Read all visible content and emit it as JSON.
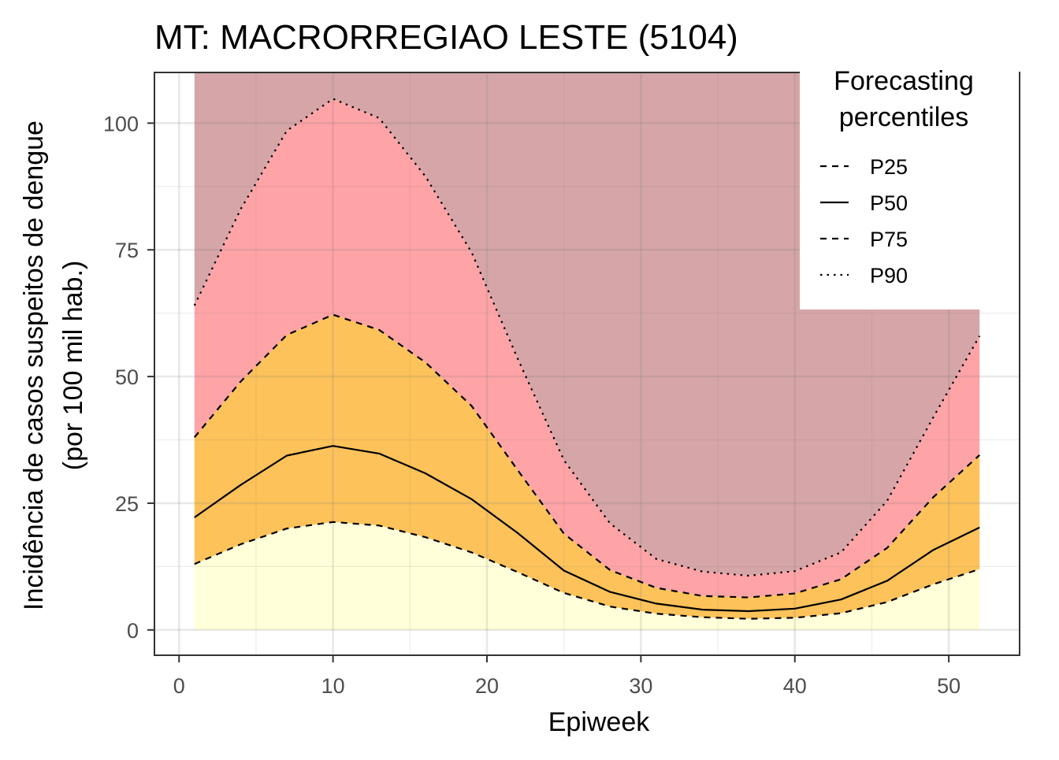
{
  "chart_data": {
    "type": "area",
    "title": "MT: MACRORREGIAO LESTE (5104)",
    "xlabel": "Epiweek",
    "ylabel_line1": "Incidência de casos suspeitos de dengue",
    "ylabel_line2": "(por 100 mil hab.)",
    "xlim": [
      -1.6,
      54.6
    ],
    "ylim": [
      -5,
      110
    ],
    "xticks": [
      0,
      10,
      20,
      30,
      40,
      50
    ],
    "yticks": [
      0,
      25,
      50,
      75,
      100
    ],
    "x_tick_labels": [
      "0",
      "10",
      "20",
      "30",
      "40",
      "50"
    ],
    "y_tick_labels": [
      "0",
      "25",
      "50",
      "75",
      "100"
    ],
    "grid": true,
    "legend": {
      "title_line1": "Forecasting",
      "title_line2": "percentiles",
      "placement": "top-right",
      "entries": [
        {
          "label": "P25",
          "linetype": "dashed"
        },
        {
          "label": "P50",
          "linetype": "solid"
        },
        {
          "label": "P75",
          "linetype": "dashed"
        },
        {
          "label": "P90",
          "linetype": "dotted"
        }
      ]
    },
    "band_colors": {
      "below_p25": "#ffffd9",
      "p25_p75": "#fdc25a",
      "p75_p90": "#fea3a6",
      "above_p90": "#d5a5a7"
    },
    "x": [
      1,
      4,
      7,
      10,
      13,
      16,
      19,
      22,
      25,
      28,
      31,
      34,
      37,
      40,
      43,
      46,
      49,
      52
    ],
    "series": [
      {
        "name": "P25",
        "linetype": "dashed",
        "values": [
          13.0,
          16.9,
          20.0,
          21.3,
          20.6,
          18.3,
          15.3,
          11.4,
          7.3,
          4.6,
          3.2,
          2.5,
          2.2,
          2.4,
          3.3,
          5.5,
          9.0,
          12.0
        ]
      },
      {
        "name": "P50",
        "linetype": "solid",
        "values": [
          22.2,
          28.6,
          34.4,
          36.3,
          34.8,
          30.9,
          25.8,
          19.1,
          11.7,
          7.5,
          5.2,
          4.0,
          3.7,
          4.2,
          6.0,
          9.7,
          15.8,
          20.2
        ]
      },
      {
        "name": "P75",
        "linetype": "dashed",
        "values": [
          38.0,
          49.0,
          58.2,
          62.2,
          59.2,
          52.8,
          44.2,
          31.5,
          19.0,
          11.8,
          8.3,
          6.7,
          6.4,
          7.2,
          10.0,
          16.2,
          26.2,
          34.5
        ]
      },
      {
        "name": "P90",
        "linetype": "dotted",
        "values": [
          64.0,
          83.0,
          98.5,
          104.8,
          101.0,
          89.5,
          74.5,
          53.5,
          33.5,
          21.0,
          14.0,
          11.5,
          10.7,
          11.6,
          15.3,
          25.5,
          42.0,
          58.0
        ]
      }
    ],
    "upper_band_top": 110
  }
}
